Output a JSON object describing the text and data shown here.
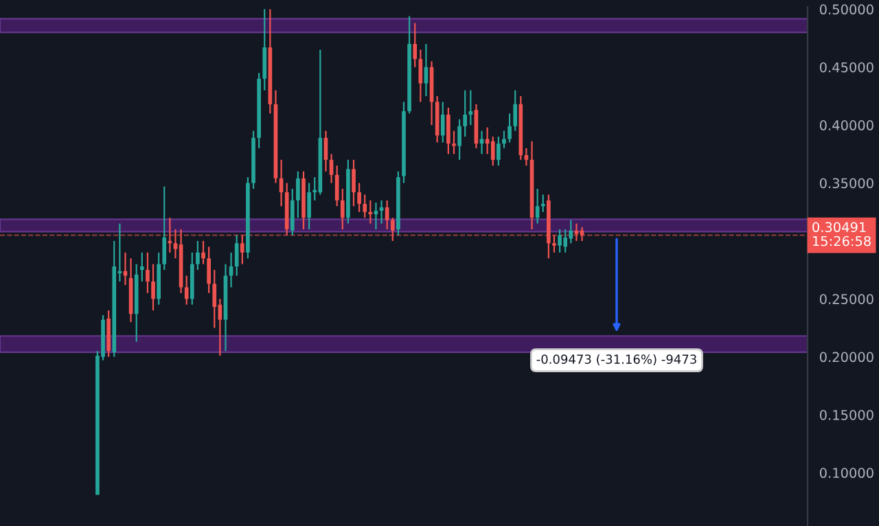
{
  "chart_data": {
    "type": "candlestick",
    "categories": [
      null,
      null,
      null,
      null,
      null,
      null,
      null,
      null,
      null,
      null,
      null,
      null,
      null,
      null,
      null,
      null,
      null,
      null,
      null,
      null,
      null,
      null,
      null,
      null,
      null,
      null,
      null,
      null,
      null,
      null,
      null,
      null,
      null,
      null,
      null,
      null,
      null,
      null,
      null,
      null,
      null,
      null,
      null,
      null,
      null,
      null,
      null,
      null,
      null,
      null,
      null,
      null,
      null,
      null,
      null,
      null,
      null,
      null,
      null,
      null,
      null,
      null,
      null,
      null,
      null,
      null,
      null,
      null,
      null,
      null,
      null,
      null,
      null,
      null,
      null,
      null,
      null,
      null,
      null,
      null,
      null,
      null,
      null,
      null,
      null,
      null,
      null,
      null,
      null,
      null,
      null,
      null,
      null,
      null,
      null,
      null,
      null,
      null,
      null,
      null,
      null,
      null,
      null,
      null,
      null,
      null,
      null,
      null,
      null,
      null,
      null,
      null,
      null,
      null,
      null,
      null,
      null,
      null,
      null,
      null,
      null,
      null,
      null,
      null,
      null,
      null,
      null,
      null,
      null,
      null,
      null,
      null,
      null,
      null,
      null,
      null,
      null,
      null,
      null,
      null,
      null,
      null,
      null,
      null,
      null
    ],
    "ohlc": [
      null,
      null,
      null,
      null,
      null,
      null,
      null,
      null,
      null,
      null,
      null,
      null,
      null,
      null,
      null,
      null,
      null,
      [
        0.081,
        0.205,
        0.081,
        0.201
      ],
      [
        0.2,
        0.236,
        0.197,
        0.232
      ],
      [
        0.233,
        0.24,
        0.2,
        0.205
      ],
      [
        0.204,
        0.3,
        0.2,
        0.278
      ],
      [
        0.272,
        0.315,
        0.265,
        0.274
      ],
      [
        0.274,
        0.29,
        0.262,
        0.27
      ],
      [
        0.268,
        0.285,
        0.23,
        0.237
      ],
      [
        0.237,
        0.28,
        0.213,
        0.271
      ],
      [
        0.275,
        0.29,
        0.265,
        0.278
      ],
      [
        0.275,
        0.29,
        0.255,
        0.265
      ],
      [
        0.265,
        0.28,
        0.24,
        0.25
      ],
      [
        0.25,
        0.29,
        0.245,
        0.28
      ],
      [
        0.28,
        0.347,
        0.275,
        0.303
      ],
      [
        0.3,
        0.32,
        0.29,
        0.298
      ],
      [
        0.298,
        0.31,
        0.285,
        0.293
      ],
      [
        0.297,
        0.31,
        0.255,
        0.26
      ],
      [
        0.26,
        0.27,
        0.245,
        0.25
      ],
      [
        0.25,
        0.29,
        0.245,
        0.28
      ],
      [
        0.28,
        0.3,
        0.275,
        0.29
      ],
      [
        0.29,
        0.3,
        0.28,
        0.285
      ],
      [
        0.285,
        0.295,
        0.255,
        0.263
      ],
      [
        0.263,
        0.275,
        0.225,
        0.243
      ],
      [
        0.245,
        0.25,
        0.201,
        0.232
      ],
      [
        0.232,
        0.28,
        0.205,
        0.27
      ],
      [
        0.27,
        0.29,
        0.26,
        0.278
      ],
      [
        0.278,
        0.305,
        0.27,
        0.298
      ],
      [
        0.298,
        0.305,
        0.28,
        0.29
      ],
      [
        0.29,
        0.355,
        0.285,
        0.35
      ],
      [
        0.35,
        0.395,
        0.345,
        0.389
      ],
      [
        0.389,
        0.445,
        0.38,
        0.44
      ],
      [
        0.44,
        0.5,
        0.43,
        0.467
      ],
      [
        0.467,
        0.5,
        0.41,
        0.418
      ],
      [
        0.418,
        0.43,
        0.35,
        0.354
      ],
      [
        0.354,
        0.37,
        0.33,
        0.342
      ],
      [
        0.342,
        0.35,
        0.305,
        0.31
      ],
      [
        0.309,
        0.345,
        0.305,
        0.335
      ],
      [
        0.335,
        0.36,
        0.32,
        0.354
      ],
      [
        0.354,
        0.36,
        0.31,
        0.32
      ],
      [
        0.32,
        0.35,
        0.31,
        0.342
      ],
      [
        0.342,
        0.355,
        0.335,
        0.344
      ],
      [
        0.342,
        0.465,
        0.34,
        0.389
      ],
      [
        0.389,
        0.395,
        0.36,
        0.37
      ],
      [
        0.37,
        0.375,
        0.35,
        0.357
      ],
      [
        0.357,
        0.365,
        0.33,
        0.335
      ],
      [
        0.335,
        0.345,
        0.31,
        0.32
      ],
      [
        0.32,
        0.37,
        0.315,
        0.362
      ],
      [
        0.362,
        0.37,
        0.33,
        0.342
      ],
      [
        0.342,
        0.35,
        0.325,
        0.332
      ],
      [
        0.332,
        0.34,
        0.32,
        0.325
      ],
      [
        0.325,
        0.335,
        0.315,
        0.323
      ],
      [
        0.323,
        0.333,
        0.31,
        0.326
      ],
      [
        0.326,
        0.335,
        0.315,
        0.329
      ],
      [
        0.329,
        0.335,
        0.31,
        0.318
      ],
      [
        0.318,
        0.32,
        0.3,
        0.309
      ],
      [
        0.31,
        0.36,
        0.305,
        0.355
      ],
      [
        0.356,
        0.42,
        0.35,
        0.412
      ],
      [
        0.412,
        0.494,
        0.41,
        0.47
      ],
      [
        0.47,
        0.488,
        0.45,
        0.457
      ],
      [
        0.457,
        0.465,
        0.42,
        0.436
      ],
      [
        0.436,
        0.47,
        0.425,
        0.45
      ],
      [
        0.45,
        0.455,
        0.4,
        0.42
      ],
      [
        0.42,
        0.425,
        0.385,
        0.391
      ],
      [
        0.391,
        0.42,
        0.385,
        0.409
      ],
      [
        0.409,
        0.415,
        0.375,
        0.384
      ],
      [
        0.384,
        0.395,
        0.375,
        0.382
      ],
      [
        0.382,
        0.405,
        0.37,
        0.399
      ],
      [
        0.399,
        0.43,
        0.39,
        0.409
      ],
      [
        0.409,
        0.43,
        0.4,
        0.412
      ],
      [
        0.413,
        0.418,
        0.38,
        0.384
      ],
      [
        0.384,
        0.395,
        0.375,
        0.388
      ],
      [
        0.388,
        0.398,
        0.375,
        0.384
      ],
      [
        0.386,
        0.39,
        0.365,
        0.37
      ],
      [
        0.37,
        0.39,
        0.365,
        0.384
      ],
      [
        0.384,
        0.395,
        0.38,
        0.388
      ],
      [
        0.388,
        0.41,
        0.385,
        0.399
      ],
      [
        0.399,
        0.43,
        0.395,
        0.418
      ],
      [
        0.418,
        0.425,
        0.37,
        0.374
      ],
      [
        0.374,
        0.38,
        0.365,
        0.37
      ],
      [
        0.37,
        0.386,
        0.31,
        0.32
      ],
      [
        0.32,
        0.345,
        0.315,
        0.33
      ],
      [
        0.33,
        0.34,
        0.325,
        0.332
      ],
      [
        0.335,
        0.34,
        0.285,
        0.298
      ],
      [
        0.298,
        0.305,
        0.29,
        0.296
      ],
      [
        0.296,
        0.31,
        0.29,
        0.305
      ],
      [
        0.295,
        0.31,
        0.29,
        0.303
      ],
      [
        0.302,
        0.318,
        0.298,
        0.309
      ],
      [
        0.309,
        0.315,
        0.3,
        0.306
      ],
      [
        0.309,
        0.312,
        0.3,
        0.30491
      ],
      null,
      null,
      null,
      null,
      null,
      null,
      null,
      null,
      null,
      null,
      null,
      null,
      null,
      null,
      null,
      null,
      null,
      null,
      null,
      null,
      null,
      null,
      null,
      null,
      null,
      null,
      null,
      null,
      null,
      null,
      null,
      null,
      null,
      null,
      null,
      null,
      null,
      null,
      null,
      null
    ],
    "ylim": [
      0.054,
      0.502
    ],
    "yticks": [
      {
        "value": 0.1,
        "label": "0.10000"
      },
      {
        "value": 0.15,
        "label": "0.15000"
      },
      {
        "value": 0.2,
        "label": "0.20000"
      },
      {
        "value": 0.25,
        "label": "0.25000"
      },
      {
        "value": 0.35,
        "label": "0.35000"
      },
      {
        "value": 0.4,
        "label": "0.40000"
      },
      {
        "value": 0.45,
        "label": "0.45000"
      },
      {
        "value": 0.5,
        "label": "0.50000"
      }
    ],
    "ref_lines": [
      {
        "axis": "y",
        "value": 0.30491,
        "label": "0.30491\n15:26:58",
        "color": "#f05350",
        "line_style": "dashed"
      }
    ],
    "bands": [
      {
        "axis": "y",
        "from": 0.48,
        "to": 0.4917,
        "color": "#4a1e6e"
      },
      {
        "axis": "y",
        "from": 0.308,
        "to": 0.3187,
        "color": "#4a1e6e"
      },
      {
        "axis": "y",
        "from": 0.204,
        "to": 0.218,
        "color": "#4a1e6e"
      }
    ],
    "annotations": [
      "-0.09473 (-31.16%) -9473"
    ]
  }
}
